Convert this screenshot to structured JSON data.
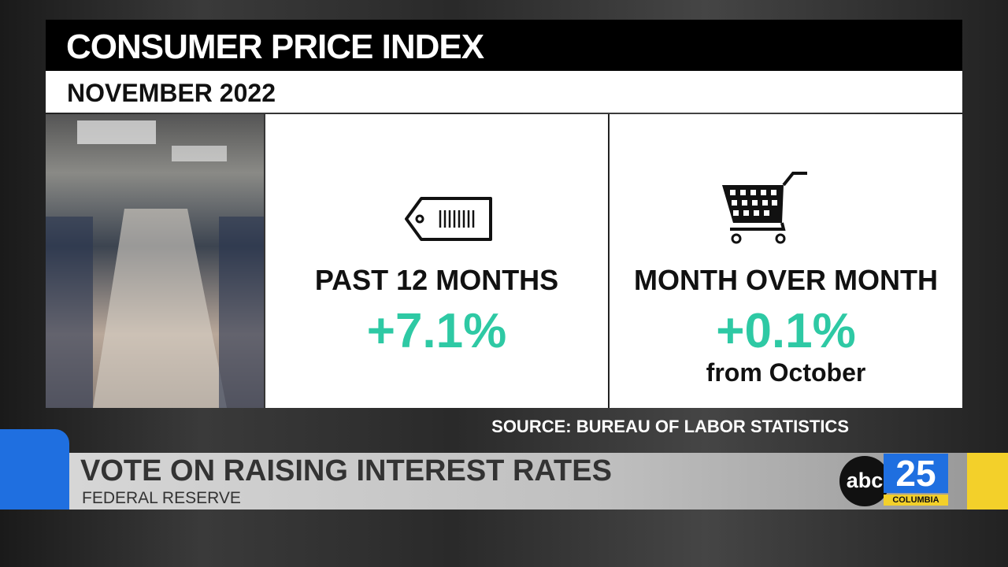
{
  "graphic": {
    "title": "CONSUMER PRICE INDEX",
    "subtitle": "NOVEMBER 2022",
    "stats": [
      {
        "label": "PAST 12 MONTHS",
        "value": "+7.1%"
      },
      {
        "label": "MONTH OVER MONTH",
        "value": "+0.1%",
        "note": "from October"
      }
    ],
    "source": "SOURCE: BUREAU OF LABOR STATISTICS"
  },
  "lower_third": {
    "headline": "VOTE ON RAISING INTEREST RATES",
    "subhead": "FEDERAL RESERVE"
  },
  "logo": {
    "network": "abc",
    "channel": "25",
    "city": "COLUMBIA"
  }
}
